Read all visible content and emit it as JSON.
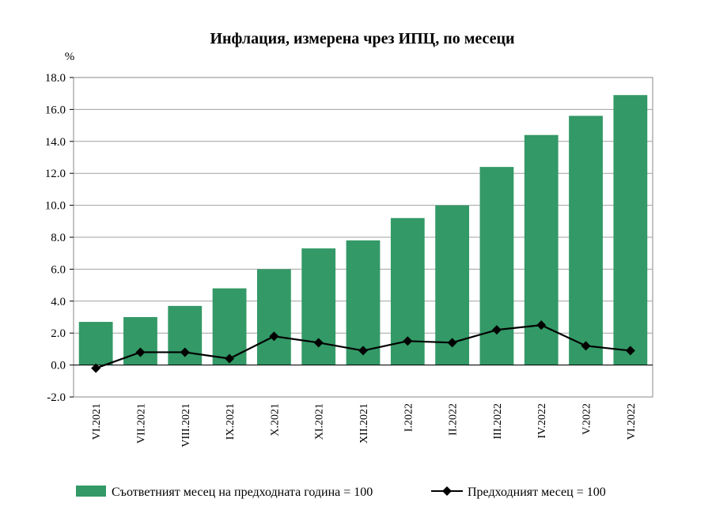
{
  "chart_data": {
    "type": "bar",
    "title": "Инфлация, измерена чрез ИПЦ, по месеци",
    "ylabel": "%",
    "xlabel": "",
    "ylim": [
      -2.0,
      18.0
    ],
    "ytick_step": 2.0,
    "yticks": [
      "-2.0",
      "0.0",
      "2.0",
      "4.0",
      "6.0",
      "8.0",
      "10.0",
      "12.0",
      "14.0",
      "16.0",
      "18.0"
    ],
    "grid": true,
    "legend_position": "bottom",
    "categories": [
      "VI.2021",
      "VII.2021",
      "VIII.2021",
      "IX.2021",
      "X.2021",
      "XI.2021",
      "XII.2021",
      "I.2022",
      "II.2022",
      "III.2022",
      "IV.2022",
      "V.2022",
      "VI.2022"
    ],
    "series": [
      {
        "name": "Съответният месец на предходната година = 100",
        "kind": "bar",
        "color": "#339966",
        "values": [
          2.7,
          3.0,
          3.7,
          4.8,
          6.0,
          7.3,
          7.8,
          9.2,
          10.0,
          12.4,
          14.4,
          15.6,
          16.9
        ]
      },
      {
        "name": "Предходният месец = 100",
        "kind": "line",
        "marker": "diamond",
        "color": "#000000",
        "values": [
          -0.2,
          0.8,
          0.8,
          0.4,
          1.8,
          1.4,
          0.9,
          1.5,
          1.4,
          2.2,
          2.5,
          1.2,
          0.9
        ]
      }
    ]
  }
}
